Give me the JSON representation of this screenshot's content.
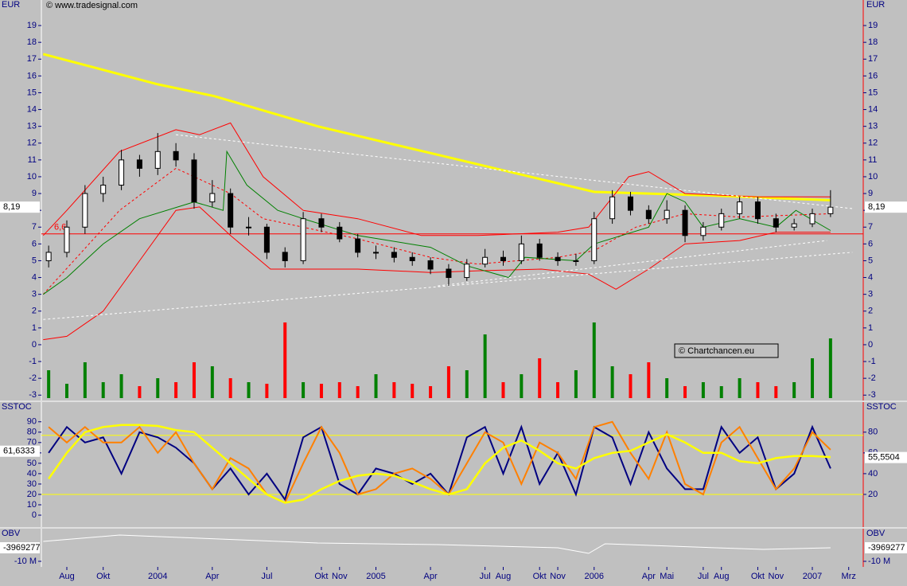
{
  "chart_data": [
    {
      "type": "candlestick",
      "axis_label": "EUR",
      "source": "© www.tradesignal.com",
      "watermark": "© Chartchancen.eu",
      "xlim": [
        -0.4,
        44.8
      ],
      "ylim": [
        -3.32,
        20.52
      ],
      "yticks": [
        19,
        18,
        17,
        16,
        15,
        14,
        13,
        12,
        11,
        10,
        9,
        8,
        7,
        6,
        5,
        4,
        3,
        2,
        1,
        0,
        -1,
        -2,
        -3
      ],
      "x": [
        0,
        1,
        2,
        3,
        4,
        5,
        6,
        7,
        8,
        9,
        10,
        11,
        12,
        13,
        14,
        15,
        16,
        17,
        18,
        19,
        20,
        21,
        22,
        23,
        24,
        25,
        26,
        27,
        28,
        29,
        30,
        31,
        32,
        33,
        34,
        35,
        36,
        37,
        38,
        39,
        40,
        41,
        42,
        43
      ],
      "open": [
        5,
        5.5,
        7,
        9,
        9.5,
        11,
        10.5,
        11.5,
        11,
        8.5,
        9,
        7,
        7,
        5.5,
        5,
        7.5,
        7,
        6.3,
        5.5,
        5.5,
        5.2,
        5,
        4.5,
        4,
        4.8,
        5.2,
        5,
        6,
        5.2,
        5,
        5,
        7.5,
        8.8,
        8,
        7.5,
        8,
        6.5,
        7,
        7.8,
        8.5,
        7.5,
        7,
        7.2,
        7.8
      ],
      "high": [
        5.9,
        7.4,
        9.5,
        10,
        11.6,
        11.3,
        12.6,
        12,
        11.4,
        9.8,
        9.3,
        7.6,
        7.2,
        5.8,
        7.9,
        7.8,
        7.3,
        6.6,
        5.9,
        5.8,
        5.5,
        5.2,
        4.8,
        5.1,
        5.7,
        5.6,
        6.5,
        6.3,
        5.5,
        5.4,
        7.9,
        9.2,
        9.1,
        8.3,
        8.6,
        8.3,
        7.3,
        8.1,
        8.8,
        8.8,
        7.8,
        7.5,
        8.1,
        9.2
      ],
      "low": [
        4.6,
        5.2,
        6.6,
        8.5,
        9.2,
        10,
        10.1,
        10.6,
        8.1,
        8.2,
        6.6,
        6.5,
        5.1,
        4.6,
        4.8,
        6.7,
        6.1,
        5.2,
        5.1,
        4.9,
        4.7,
        4.2,
        3.5,
        3.8,
        4.6,
        4.7,
        4.8,
        5,
        4.7,
        4.7,
        4.8,
        7.2,
        7.7,
        7.2,
        7.2,
        6.1,
        6.2,
        6.8,
        7.5,
        7.2,
        6.7,
        6.8,
        7,
        7.6
      ],
      "close": [
        5.5,
        7,
        9,
        9.5,
        11,
        10.5,
        11.5,
        11,
        8.5,
        9,
        7,
        7,
        5.5,
        5,
        7.5,
        7,
        6.3,
        5.5,
        5.5,
        5.2,
        5,
        4.5,
        4,
        4.8,
        5.2,
        5,
        6,
        5.2,
        5,
        5,
        7.5,
        8.8,
        8,
        7.5,
        8,
        6.5,
        7,
        7.8,
        8.5,
        7.5,
        7,
        7.2,
        7.8,
        8.19
      ],
      "volume": [
        35,
        18,
        45,
        20,
        30,
        15,
        25,
        20,
        45,
        40,
        25,
        20,
        18,
        95,
        20,
        18,
        20,
        15,
        30,
        20,
        18,
        15,
        40,
        35,
        80,
        20,
        30,
        50,
        20,
        35,
        95,
        40,
        30,
        45,
        25,
        15,
        20,
        15,
        25,
        20,
        15,
        20,
        50,
        75
      ],
      "up_color": "#008000",
      "down_color": "#ff0000",
      "hline": {
        "value": 6.6,
        "label": "6,6",
        "color": "#ff0000"
      },
      "value_boxes": [
        {
          "side": "left",
          "value": 8.19,
          "label": "8,19"
        },
        {
          "side": "right",
          "value": 8.19,
          "label": "8,19"
        }
      ],
      "series": [
        {
          "color": "#ffff00",
          "width": 3,
          "x": [
            -0.3,
            6,
            9.1,
            14.8,
            21.8,
            30,
            36,
            43
          ],
          "values": [
            17.3,
            15.5,
            14.8,
            13,
            11.2,
            9.1,
            8.9,
            8.6
          ]
        },
        {
          "color": "#ff0000",
          "width": 1,
          "x": [
            -0.3,
            1,
            3.9,
            7,
            8.3,
            10,
            11.8,
            14,
            17,
            20.5,
            23.6,
            28,
            29.7,
            31.9,
            33,
            35,
            39,
            43
          ],
          "values": [
            6.5,
            8,
            11.5,
            12.8,
            12.5,
            13.2,
            10,
            8,
            7.5,
            6.5,
            6.5,
            6.7,
            7,
            10,
            10.3,
            9,
            8.8,
            8.8
          ]
        },
        {
          "color": "#ff0000",
          "width": 1,
          "x": [
            -0.3,
            1,
            3,
            5,
            7,
            8.3,
            10,
            12.2,
            17,
            21,
            23.6,
            27.1,
            29.7,
            31.2,
            33,
            35,
            38,
            40,
            43
          ],
          "values": [
            0.3,
            0.5,
            2,
            5,
            8,
            8.2,
            6.5,
            4.5,
            4.5,
            4.3,
            4.4,
            4.5,
            4.2,
            3.3,
            4.5,
            6,
            6.2,
            6.7,
            6.7
          ]
        },
        {
          "color": "#ff0000",
          "width": 1,
          "dash": "3,3",
          "x": [
            -0.3,
            3.9,
            7,
            10,
            11.8,
            17,
            21,
            23.6,
            28,
            30,
            32.3,
            35,
            38,
            43
          ],
          "values": [
            3,
            8,
            10.5,
            9,
            7.5,
            6.3,
            5.2,
            4.8,
            5.2,
            5.6,
            7,
            7.8,
            7.6,
            7.8
          ]
        },
        {
          "color": "#008000",
          "width": 1,
          "x": [
            -0.3,
            1,
            3,
            5,
            8,
            9.6,
            9.8,
            10.9,
            12.6,
            14,
            17,
            21,
            23,
            25.3,
            26.2,
            29,
            30,
            33,
            34,
            35,
            36,
            38,
            40,
            41.1,
            43
          ],
          "values": [
            3,
            4,
            6,
            7.5,
            8.5,
            8,
            11.5,
            9.5,
            8,
            7.5,
            6.5,
            5.8,
            4.7,
            4,
            5.2,
            5,
            6,
            7,
            9,
            8.5,
            7,
            7.5,
            7,
            8,
            6.8
          ]
        },
        {
          "color": "#ffffff",
          "width": 1,
          "dash": "3,3",
          "x": [
            -0.3,
            44.2
          ],
          "values": [
            1.5,
            5.5
          ]
        },
        {
          "color": "#ffffff",
          "width": 1,
          "dash": "3,3",
          "x": [
            7,
            44.2
          ],
          "values": [
            12.5,
            8.1
          ]
        },
        {
          "color": "#ffffff",
          "width": 1,
          "dash": "3,3",
          "x": [
            21.4,
            42.8
          ],
          "values": [
            3.5,
            6.2
          ]
        }
      ]
    },
    {
      "type": "line",
      "axis_label": "SSTOC",
      "xlim": [
        -0.4,
        44.8
      ],
      "ylim": [
        -11.5,
        109
      ],
      "yticks": [
        90,
        80,
        70,
        60,
        50,
        40,
        30,
        20,
        10,
        0
      ],
      "y2lim": [
        -11.5,
        109
      ],
      "y2ticks": [
        80,
        60,
        40,
        20
      ],
      "hlines": [
        77,
        20
      ],
      "hline_color": "#ffff00",
      "value_boxes": [
        {
          "side": "left",
          "value": 61.6333,
          "label": "61,6333"
        },
        {
          "side": "right",
          "value": 55.5504,
          "label": "55,5504"
        }
      ],
      "series": [
        {
          "color": "#000080",
          "width": 2,
          "x": [
            0,
            1,
            2,
            3,
            4,
            5,
            6,
            7,
            8,
            9,
            10,
            11,
            12,
            13,
            14,
            15,
            16,
            17,
            18,
            19,
            20,
            21,
            22,
            23,
            24,
            25,
            26,
            27,
            28,
            29,
            30,
            31,
            32,
            33,
            34,
            35,
            36,
            37,
            38,
            39,
            40,
            41,
            42,
            43
          ],
          "values": [
            60,
            85,
            70,
            75,
            40,
            80,
            75,
            65,
            50,
            25,
            45,
            20,
            40,
            15,
            75,
            85,
            30,
            20,
            45,
            40,
            30,
            40,
            20,
            75,
            85,
            40,
            85,
            30,
            60,
            20,
            85,
            75,
            30,
            80,
            45,
            25,
            25,
            85,
            60,
            75,
            25,
            40,
            85,
            45
          ]
        },
        {
          "color": "#ff8000",
          "width": 2,
          "x": [
            0,
            1,
            2,
            3,
            4,
            5,
            6,
            7,
            8,
            9,
            10,
            11,
            12,
            13,
            14,
            15,
            16,
            17,
            18,
            19,
            20,
            21,
            22,
            23,
            24,
            25,
            26,
            27,
            28,
            29,
            30,
            31,
            32,
            33,
            34,
            35,
            36,
            37,
            38,
            39,
            40,
            41,
            42,
            43
          ],
          "values": [
            85,
            70,
            85,
            70,
            70,
            85,
            60,
            80,
            50,
            25,
            55,
            45,
            20,
            12,
            50,
            85,
            60,
            20,
            25,
            40,
            45,
            35,
            20,
            50,
            80,
            70,
            30,
            70,
            60,
            35,
            85,
            90,
            60,
            35,
            80,
            30,
            20,
            70,
            85,
            55,
            25,
            45,
            80,
            63
          ]
        },
        {
          "color": "#ffff00",
          "width": 2.5,
          "x": [
            0,
            1,
            2,
            3,
            4,
            5,
            6,
            7,
            8,
            9,
            10,
            11,
            12,
            13,
            14,
            15,
            16,
            17,
            18,
            19,
            20,
            21,
            22,
            23,
            24,
            25,
            26,
            27,
            28,
            29,
            30,
            31,
            32,
            33,
            34,
            35,
            36,
            37,
            38,
            39,
            40,
            41,
            42,
            43
          ],
          "values": [
            35,
            60,
            80,
            85,
            87,
            87,
            86,
            82,
            80,
            65,
            50,
            35,
            20,
            12,
            15,
            25,
            33,
            38,
            40,
            38,
            32,
            25,
            20,
            25,
            50,
            65,
            72,
            62,
            50,
            45,
            55,
            60,
            62,
            70,
            78,
            70,
            60,
            60,
            52,
            50,
            55,
            57,
            57,
            56
          ]
        }
      ]
    },
    {
      "type": "line",
      "axis_label": "OBV",
      "xlim": [
        -0.4,
        44.8
      ],
      "ylim": [
        -12483229,
        4544675
      ],
      "yticks": [
        {
          "value": -10000000,
          "label": "-10 M"
        }
      ],
      "value_boxes": [
        {
          "side": "left",
          "value": -3969277
        },
        {
          "side": "right",
          "value": -3969277
        }
      ],
      "xticks": [
        {
          "value": 1,
          "label": "Aug"
        },
        {
          "value": 3,
          "label": "Okt"
        },
        {
          "value": 6,
          "label": "2004"
        },
        {
          "value": 9,
          "label": "Apr"
        },
        {
          "value": 12,
          "label": "Jul"
        },
        {
          "value": 15,
          "label": "Okt"
        },
        {
          "value": 16,
          "label": "Nov"
        },
        {
          "value": 18,
          "label": "2005"
        },
        {
          "value": 21,
          "label": "Apr"
        },
        {
          "value": 24,
          "label": "Jul"
        },
        {
          "value": 25,
          "label": "Aug"
        },
        {
          "value": 27,
          "label": "Okt"
        },
        {
          "value": 28,
          "label": "Nov"
        },
        {
          "value": 30,
          "label": "2006"
        },
        {
          "value": 33,
          "label": "Apr"
        },
        {
          "value": 34,
          "label": "Mai"
        },
        {
          "value": 36,
          "label": "Jul"
        },
        {
          "value": 37,
          "label": "Aug"
        },
        {
          "value": 39,
          "label": "Okt"
        },
        {
          "value": 40,
          "label": "Nov"
        },
        {
          "value": 42,
          "label": "2007"
        },
        {
          "value": 44,
          "label": "Mrz"
        }
      ],
      "series": [
        {
          "color": "#ffffff",
          "width": 1,
          "x": [
            -0.3,
            3.9,
            8.3,
            14.8,
            21.4,
            28,
            29.7,
            30.6,
            36.7,
            39.3,
            43
          ],
          "values": [
            -1130000,
            1710000,
            290000,
            -1840000,
            -2550000,
            -3970000,
            -6450000,
            -2200000,
            -3970000,
            -4680000,
            -3969277
          ]
        }
      ]
    }
  ]
}
